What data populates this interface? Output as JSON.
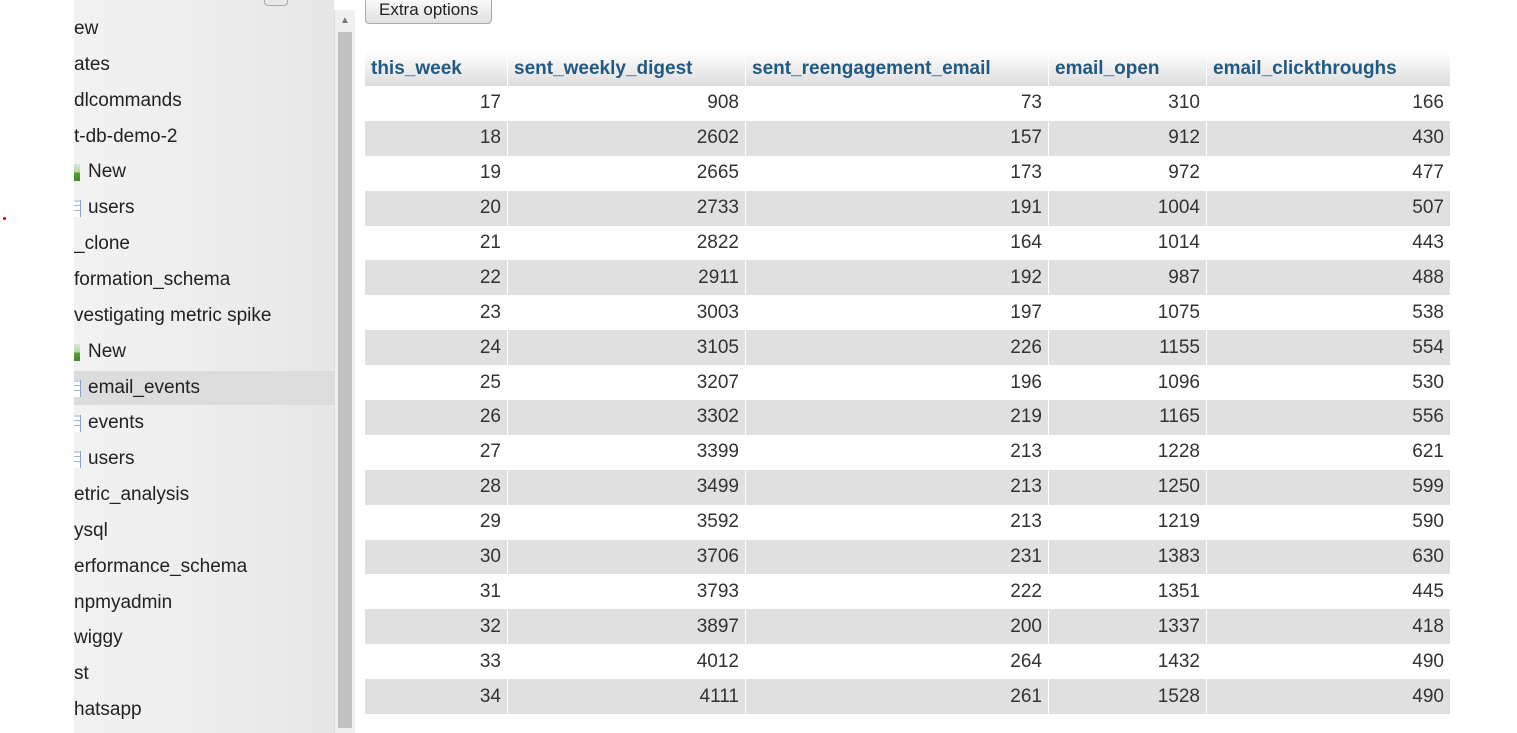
{
  "navigation": {
    "items": [
      {
        "label": "ew",
        "icon": "",
        "indent": 0
      },
      {
        "label": "ates",
        "icon": "",
        "indent": 0
      },
      {
        "label": "dlcommands",
        "icon": "",
        "indent": 0
      },
      {
        "label": "t-db-demo-2",
        "icon": "",
        "indent": 0
      },
      {
        "label": "New",
        "icon": "new-icon",
        "indent": 1
      },
      {
        "label": "users",
        "icon": "table-icon",
        "indent": 1
      },
      {
        "label": "_clone",
        "icon": "",
        "indent": 0
      },
      {
        "label": "formation_schema",
        "icon": "",
        "indent": 0
      },
      {
        "label": "vestigating metric spike",
        "icon": "",
        "indent": 0
      },
      {
        "label": "New",
        "icon": "new-icon",
        "indent": 1
      },
      {
        "label": "email_events",
        "icon": "table-icon",
        "indent": 1,
        "selected": true
      },
      {
        "label": "events",
        "icon": "table-icon",
        "indent": 1
      },
      {
        "label": "users",
        "icon": "table-icon",
        "indent": 1
      },
      {
        "label": "etric_analysis",
        "icon": "",
        "indent": 0
      },
      {
        "label": "ysql",
        "icon": "",
        "indent": 0
      },
      {
        "label": "erformance_schema",
        "icon": "",
        "indent": 0
      },
      {
        "label": "npmyadmin",
        "icon": "",
        "indent": 0
      },
      {
        "label": "wiggy",
        "icon": "",
        "indent": 0
      },
      {
        "label": "st",
        "icon": "",
        "indent": 0
      },
      {
        "label": "hatsapp",
        "icon": "",
        "indent": 0
      }
    ]
  },
  "toolbar": {
    "extra_options_label": "Extra options"
  },
  "results": {
    "columns": [
      "this_week",
      "sent_weekly_digest",
      "sent_reengagement_email",
      "email_open",
      "email_clickthroughs"
    ],
    "rows": [
      [
        "17",
        "908",
        "73",
        "310",
        "166"
      ],
      [
        "18",
        "2602",
        "157",
        "912",
        "430"
      ],
      [
        "19",
        "2665",
        "173",
        "972",
        "477"
      ],
      [
        "20",
        "2733",
        "191",
        "1004",
        "507"
      ],
      [
        "21",
        "2822",
        "164",
        "1014",
        "443"
      ],
      [
        "22",
        "2911",
        "192",
        "987",
        "488"
      ],
      [
        "23",
        "3003",
        "197",
        "1075",
        "538"
      ],
      [
        "24",
        "3105",
        "226",
        "1155",
        "554"
      ],
      [
        "25",
        "3207",
        "196",
        "1096",
        "530"
      ],
      [
        "26",
        "3302",
        "219",
        "1165",
        "556"
      ],
      [
        "27",
        "3399",
        "213",
        "1228",
        "621"
      ],
      [
        "28",
        "3499",
        "213",
        "1250",
        "599"
      ],
      [
        "29",
        "3592",
        "213",
        "1219",
        "590"
      ],
      [
        "30",
        "3706",
        "231",
        "1383",
        "630"
      ],
      [
        "31",
        "3793",
        "222",
        "1351",
        "445"
      ],
      [
        "32",
        "3897",
        "200",
        "1337",
        "418"
      ],
      [
        "33",
        "4012",
        "264",
        "1432",
        "490"
      ],
      [
        "34",
        "4111",
        "261",
        "1528",
        "490"
      ]
    ]
  },
  "colors": {
    "header_text": "#235a81",
    "row_alt_background": "#e0e0e0",
    "selected_nav_background": "#dcdcdc"
  }
}
